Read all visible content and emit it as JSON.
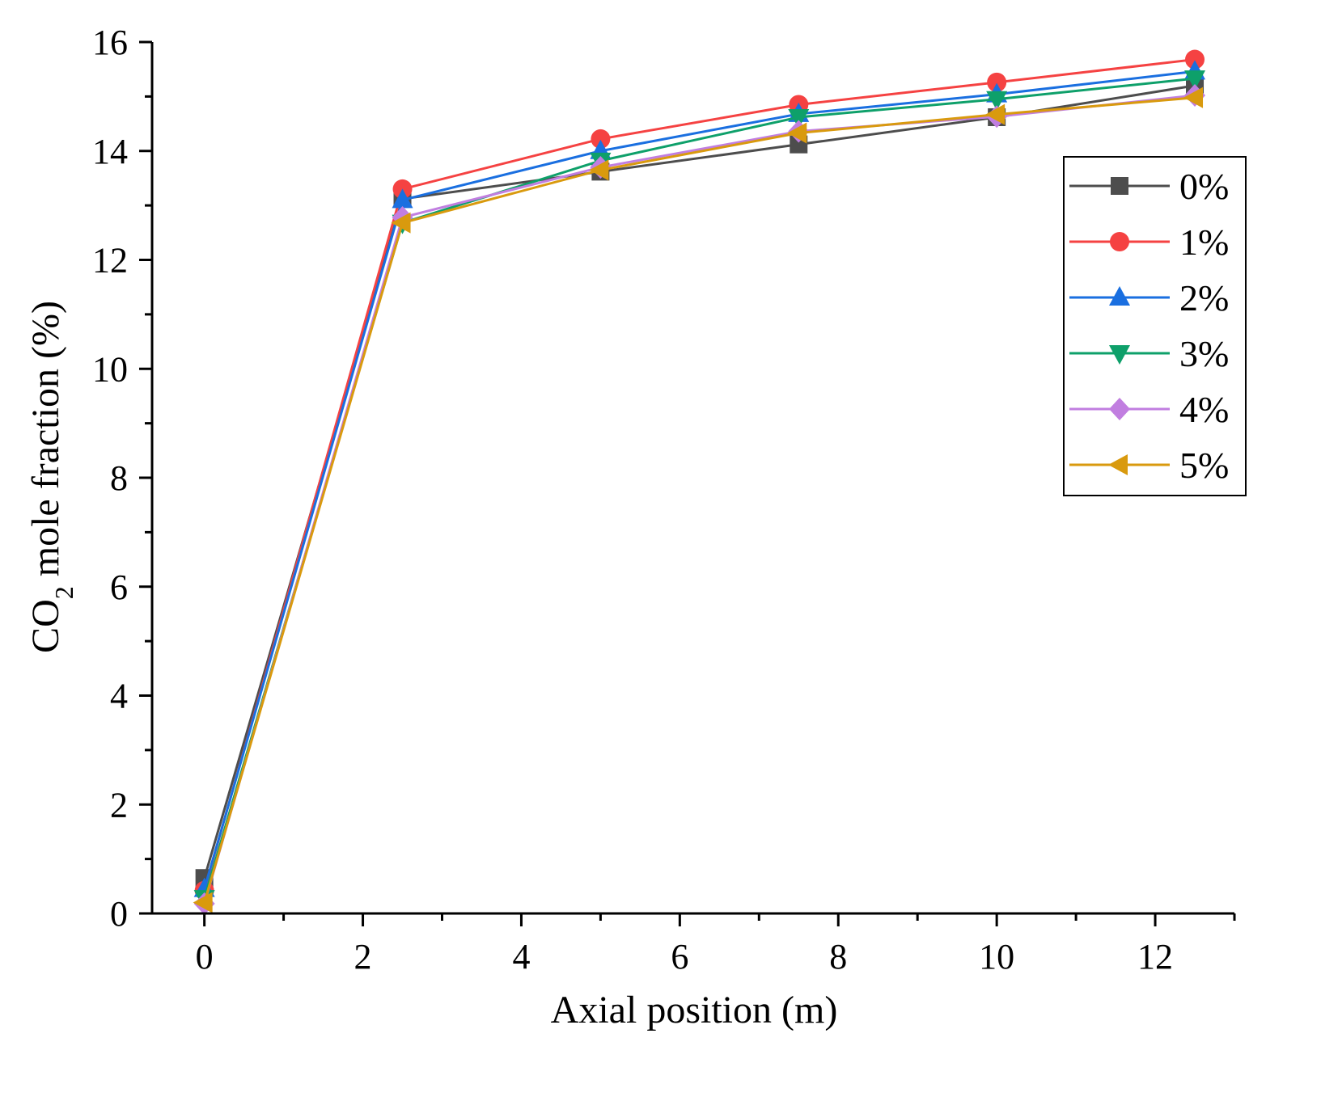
{
  "chart_data": {
    "type": "line",
    "title": "",
    "xlabel": "Axial position (m)",
    "ylabel_main": "CO",
    "ylabel_sub": "2",
    "ylabel_rest": " mole fraction (%)",
    "xlim": [
      -0.66,
      13.0
    ],
    "ylim": [
      0,
      16
    ],
    "xticks": [
      0,
      2,
      4,
      6,
      8,
      10,
      12
    ],
    "xtick_labels": [
      "0",
      "2",
      "4",
      "6",
      "8",
      "10",
      "12"
    ],
    "yticks": [
      0,
      2,
      4,
      6,
      8,
      10,
      12,
      14,
      16
    ],
    "ytick_labels": [
      "0",
      "2",
      "4",
      "6",
      "8",
      "10",
      "12",
      "14",
      "16"
    ],
    "x_minor_step": 1,
    "y_minor_step": 1,
    "grid": false,
    "legend_position": "top-right",
    "x": [
      0,
      2.5,
      5,
      7.5,
      10,
      12.5
    ],
    "series": [
      {
        "name": "0%",
        "color": "#4d4d4d",
        "marker": "square",
        "values": [
          0.65,
          13.12,
          13.62,
          14.12,
          14.62,
          15.2
        ]
      },
      {
        "name": "1%",
        "color": "#f54242",
        "marker": "circle",
        "values": [
          0.42,
          13.3,
          14.22,
          14.85,
          15.26,
          15.68
        ]
      },
      {
        "name": "2%",
        "color": "#1a6fe0",
        "marker": "triangle-up",
        "values": [
          0.45,
          13.1,
          14.0,
          14.68,
          15.04,
          15.46
        ]
      },
      {
        "name": "3%",
        "color": "#0ea06a",
        "marker": "triangle-down",
        "values": [
          0.28,
          12.68,
          13.82,
          14.62,
          14.95,
          15.33
        ]
      },
      {
        "name": "4%",
        "color": "#c17ee0",
        "marker": "diamond",
        "values": [
          0.18,
          12.78,
          13.7,
          14.36,
          14.63,
          15.02
        ]
      },
      {
        "name": "5%",
        "color": "#d99a0e",
        "marker": "triangle-left",
        "values": [
          0.2,
          12.68,
          13.65,
          14.33,
          14.67,
          14.98
        ]
      }
    ]
  }
}
